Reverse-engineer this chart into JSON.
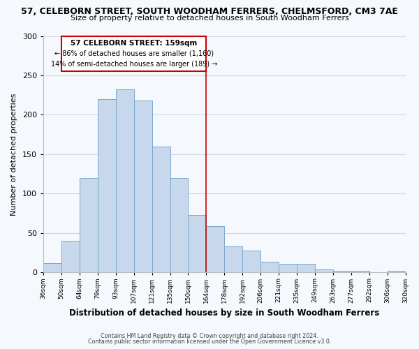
{
  "title": "57, CELEBORN STREET, SOUTH WOODHAM FERRERS, CHELMSFORD, CM3 7AE",
  "subtitle": "Size of property relative to detached houses in South Woodham Ferrers",
  "xlabel": "Distribution of detached houses by size in South Woodham Ferrers",
  "ylabel": "Number of detached properties",
  "bin_labels": [
    "36sqm",
    "50sqm",
    "64sqm",
    "79sqm",
    "93sqm",
    "107sqm",
    "121sqm",
    "135sqm",
    "150sqm",
    "164sqm",
    "178sqm",
    "192sqm",
    "206sqm",
    "221sqm",
    "235sqm",
    "249sqm",
    "263sqm",
    "277sqm",
    "292sqm",
    "306sqm",
    "320sqm"
  ],
  "bar_heights": [
    12,
    40,
    120,
    220,
    232,
    218,
    160,
    120,
    73,
    59,
    33,
    28,
    14,
    11,
    11,
    4,
    2,
    2,
    0,
    2
  ],
  "bar_color": "#c8d8ec",
  "bar_edge_color": "#7aa8d0",
  "ylim": [
    0,
    300
  ],
  "yticks": [
    0,
    50,
    100,
    150,
    200,
    250,
    300
  ],
  "property_label": "57 CELEBORN STREET: 159sqm",
  "annotation_line1": "← 86% of detached houses are smaller (1,160)",
  "annotation_line2": "14% of semi-detached houses are larger (189) →",
  "vline_color": "#cc0000",
  "box_edge_color": "#cc0000",
  "footnote1": "Contains HM Land Registry data © Crown copyright and database right 2024.",
  "footnote2": "Contains public sector information licensed under the Open Government Licence v3.0.",
  "bg_color": "#f5f8fc",
  "grid_color": "#d0d8e4"
}
